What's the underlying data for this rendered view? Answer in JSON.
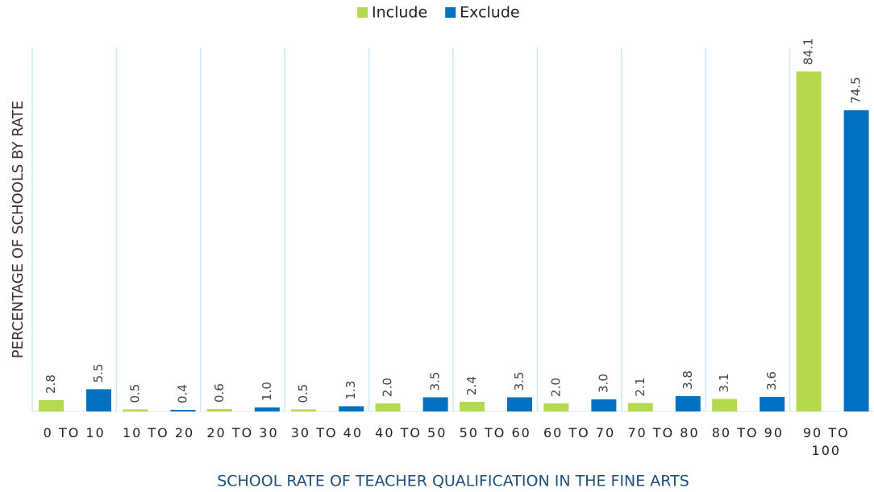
{
  "chart_data": {
    "type": "bar",
    "x_label": "SCHOOL RATE OF TEACHER QUALIFICATION IN THE FINE ARTS",
    "y_label": "PERCENTAGE OF SCHOOLS  BY RATE",
    "categories": [
      "0 TO 10",
      "10 TO 20",
      "20 TO 30",
      "30 TO 40",
      "40 TO 50",
      "50 TO 60",
      "60 TO 70",
      "70 TO 80",
      "80 TO 90",
      "90 TO 100"
    ],
    "series": [
      {
        "name": "Include",
        "color": "#b4d84e",
        "values": [
          2.8,
          0.5,
          0.6,
          0.5,
          2.0,
          2.4,
          2.0,
          2.1,
          3.1,
          84.1
        ],
        "value_labels": [
          "2.8",
          "0.5",
          "0.6",
          "0.5",
          "2.0",
          "2.4",
          "2.0",
          "2.1",
          "3.1",
          "84.1"
        ]
      },
      {
        "name": "Exclude",
        "color": "#0070c0",
        "values": [
          5.5,
          0.4,
          1.0,
          1.3,
          3.5,
          3.5,
          3.0,
          3.8,
          3.6,
          74.5
        ],
        "value_labels": [
          "5.5",
          "0.4",
          "1.0",
          "1.3",
          "3.5",
          "3.5",
          "3.0",
          "3.8",
          "3.6",
          "74.5"
        ]
      }
    ],
    "ylim": [
      0,
      90
    ],
    "legend": "top"
  }
}
